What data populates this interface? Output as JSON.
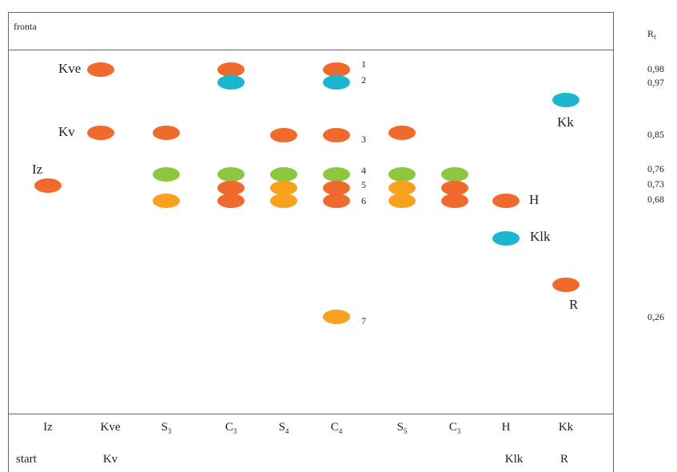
{
  "front_label": "fronta",
  "rf_header": {
    "base": "R",
    "sub": "f"
  },
  "colors": {
    "orange": "#f06a2e",
    "light_orange": "#f7a11f",
    "green": "#8dc63f",
    "cyan": "#1bb5cf",
    "frame": "#666666"
  },
  "rf_values": [
    "0,98",
    "0,97",
    "0,85",
    "0,76",
    "0,73",
    "0,68",
    "0,26"
  ],
  "lanes": [
    {
      "top": "Iz",
      "sub": "",
      "bottom": "start"
    },
    {
      "top": "Kve",
      "sub": "",
      "bottom": "Kv"
    },
    {
      "top": "S",
      "sub": "3",
      "bottom": ""
    },
    {
      "top": "C",
      "sub": "3",
      "bottom": ""
    },
    {
      "top": "S",
      "sub": "4",
      "bottom": ""
    },
    {
      "top": "C",
      "sub": "4",
      "bottom": ""
    },
    {
      "top": "S",
      "sub": "5",
      "bottom": ""
    },
    {
      "top": "C",
      "sub": "3",
      "bottom": ""
    },
    {
      "top": "H",
      "sub": "",
      "bottom": "Klk"
    },
    {
      "top": "Kk",
      "sub": "",
      "bottom": "R"
    }
  ],
  "spot_labels": [
    {
      "text": "Iz",
      "lane": 0
    },
    {
      "text": "Kve",
      "lane": 1
    },
    {
      "text": "Kv",
      "lane": 1
    },
    {
      "text": "H",
      "lane": 8
    },
    {
      "text": "Klk",
      "lane": 8
    },
    {
      "text": "Kk",
      "lane": 9
    },
    {
      "text": "R",
      "lane": 9
    }
  ],
  "spot_numbers": [
    "1",
    "2",
    "3",
    "4",
    "5",
    "6",
    "7"
  ],
  "spots": [
    {
      "lane": 0,
      "color": "orange"
    },
    {
      "lane": 1,
      "color": "orange"
    },
    {
      "lane": 1,
      "color": "orange"
    },
    {
      "lane": 2,
      "color": "orange"
    },
    {
      "lane": 2,
      "color": "green"
    },
    {
      "lane": 2,
      "color": "light_orange"
    },
    {
      "lane": 3,
      "color": "orange"
    },
    {
      "lane": 3,
      "color": "cyan"
    },
    {
      "lane": 3,
      "color": "green"
    },
    {
      "lane": 3,
      "color": "orange"
    },
    {
      "lane": 3,
      "color": "orange"
    },
    {
      "lane": 4,
      "color": "orange"
    },
    {
      "lane": 4,
      "color": "green"
    },
    {
      "lane": 4,
      "color": "light_orange"
    },
    {
      "lane": 4,
      "color": "light_orange"
    },
    {
      "lane": 5,
      "color": "orange"
    },
    {
      "lane": 5,
      "color": "cyan"
    },
    {
      "lane": 5,
      "color": "orange"
    },
    {
      "lane": 5,
      "color": "green"
    },
    {
      "lane": 5,
      "color": "orange"
    },
    {
      "lane": 5,
      "color": "orange"
    },
    {
      "lane": 5,
      "color": "light_orange"
    },
    {
      "lane": 6,
      "color": "orange"
    },
    {
      "lane": 6,
      "color": "green"
    },
    {
      "lane": 6,
      "color": "light_orange"
    },
    {
      "lane": 6,
      "color": "light_orange"
    },
    {
      "lane": 7,
      "color": "green"
    },
    {
      "lane": 7,
      "color": "orange"
    },
    {
      "lane": 7,
      "color": "orange"
    },
    {
      "lane": 8,
      "color": "orange"
    },
    {
      "lane": 8,
      "color": "cyan"
    },
    {
      "lane": 9,
      "color": "cyan"
    },
    {
      "lane": 9,
      "color": "orange"
    }
  ]
}
